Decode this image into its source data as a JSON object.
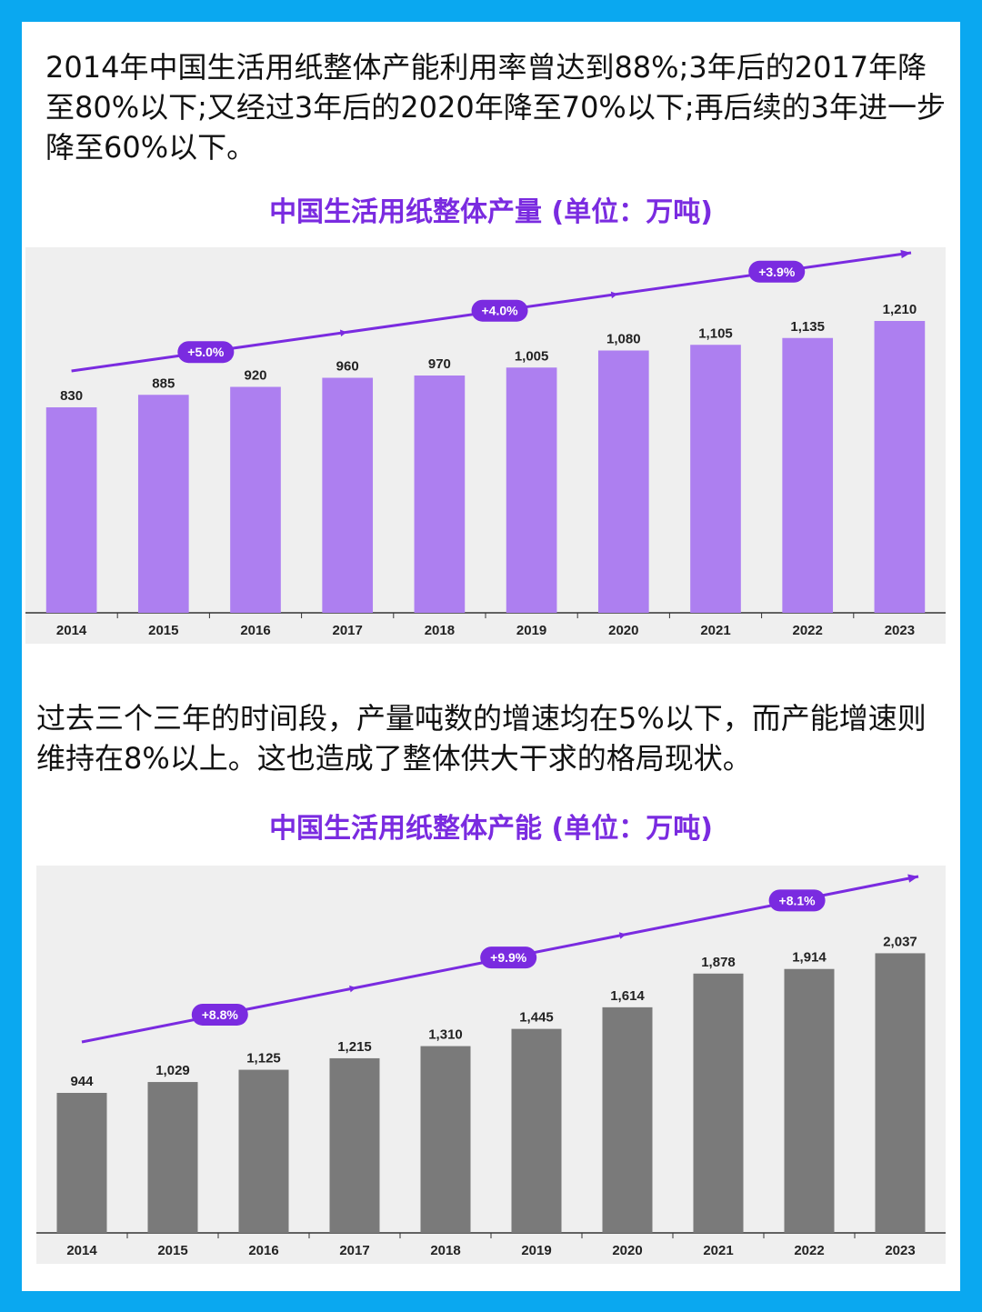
{
  "intro_text": "2014年中国生活用纸整体产能利用率曾达到88%;3年后的2017年降至80%以下;又经过3年后的2020年降至70%以下;再后续的3年进一步降至60%以下。",
  "middle_text": "过去三个三年的时间段，产量吨数的增速均在5%以下，而产能增速则维持在8%以上。这也造成了整体供大干求的格局现状。",
  "colors": {
    "background": "#0aa8f0",
    "accent": "#7a2be0",
    "production_bar": "#ad7ff0",
    "capacity_bar": "#7a7a7a",
    "plot_bg": "#efefef"
  },
  "chart_data": [
    {
      "type": "bar",
      "title": "中国生活用纸整体产量 (单位：万吨)",
      "categories": [
        "2014",
        "2015",
        "2016",
        "2017",
        "2018",
        "2019",
        "2020",
        "2021",
        "2022",
        "2023"
      ],
      "values": [
        830,
        885,
        920,
        960,
        970,
        1005,
        1080,
        1105,
        1135,
        1210
      ],
      "value_labels": [
        "830",
        "885",
        "920",
        "960",
        "970",
        "1,005",
        "1,080",
        "1,105",
        "1,135",
        "1,210"
      ],
      "growth_annotations": [
        "+5.0%",
        "+4.0%",
        "+3.9%"
      ],
      "xlabel": "",
      "ylabel": "",
      "grid": false
    },
    {
      "type": "bar",
      "title": "中国生活用纸整体产能 (单位：万吨)",
      "categories": [
        "2014",
        "2015",
        "2016",
        "2017",
        "2018",
        "2019",
        "2020",
        "2021",
        "2022",
        "2023"
      ],
      "values": [
        944,
        1029,
        1125,
        1215,
        1310,
        1445,
        1614,
        1878,
        1914,
        2037
      ],
      "value_labels": [
        "944",
        "1,029",
        "1,125",
        "1,215",
        "1,310",
        "1,445",
        "1,614",
        "1,878",
        "1,914",
        "2,037"
      ],
      "growth_annotations": [
        "+8.8%",
        "+9.9%",
        "+8.1%"
      ],
      "xlabel": "",
      "ylabel": "",
      "grid": false
    }
  ]
}
